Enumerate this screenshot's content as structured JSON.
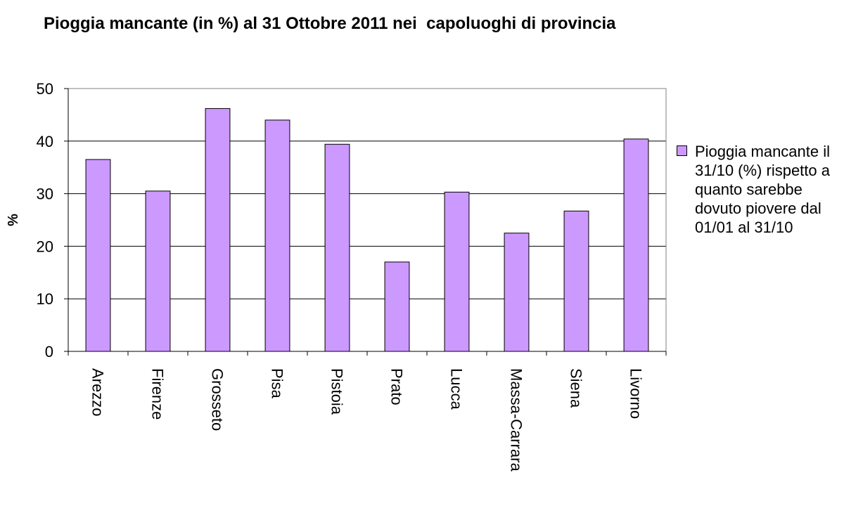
{
  "title": "Pioggia mancante (in %) al 31 Ottobre 2011 nei  capoluoghi di provincia",
  "colors": {
    "bar": "#cc99ff",
    "axis": "#808080",
    "grid": "#000000"
  },
  "chart_data": {
    "type": "bar",
    "title": "Pioggia mancante (in %) al 31 Ottobre 2011 nei  capoluoghi di provincia",
    "xlabel": "",
    "ylabel": "%",
    "ylim": [
      0,
      50
    ],
    "yticks": [
      0,
      10,
      20,
      30,
      40,
      50
    ],
    "grid": true,
    "legend_position": "right",
    "categories": [
      "Arezzo",
      "Firenze",
      "Grosseto",
      "Pisa",
      "Pistoia",
      "Prato",
      "Lucca",
      "Massa-Carrara",
      "Siena",
      "Livorno"
    ],
    "series": [
      {
        "name": "Pioggia mancante il 31/10 (%) rispetto a quanto sarebbe dovuto piovere dal 01/01 al 31/10",
        "values": [
          36.5,
          30.5,
          46.2,
          44.0,
          39.4,
          17.0,
          30.3,
          22.5,
          26.7,
          40.4
        ]
      }
    ]
  }
}
